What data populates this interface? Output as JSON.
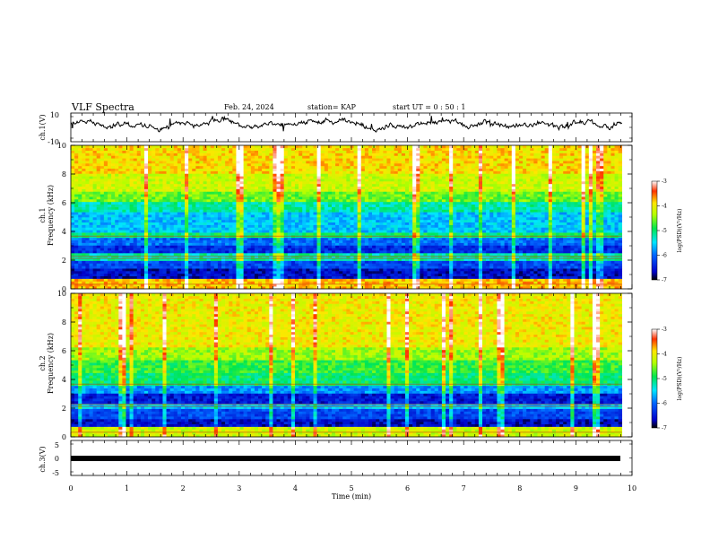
{
  "header": {
    "title": "VLF Spectra",
    "date": "Feb. 24, 2024",
    "station": "station= KAP",
    "start": "start  UT =   0 : 50 : 1"
  },
  "chart_data": [
    {
      "type": "line",
      "name": "ch1-waveform",
      "ylabel": "ch.1(V)",
      "ylim": [
        -10,
        10
      ],
      "yticks": [
        "10",
        "-10"
      ],
      "xlim": [
        0,
        10
      ],
      "values_hint": "noisy waveform around +2 V, range roughly -6 to +6 V over 0-9.8 min"
    },
    {
      "type": "heatmap",
      "name": "ch1-spectrogram",
      "ylabel": "ch.1\nFrequency  (kHz)",
      "ylim": [
        0,
        10
      ],
      "yticks": [
        "0",
        "2",
        "4",
        "6",
        "8",
        "10"
      ],
      "xlim": [
        0,
        9.82
      ],
      "colorbar": {
        "label": "log(PSD)(V²/Hz)",
        "range": [
          -7,
          -3
        ],
        "ticks": [
          "-3",
          "-4",
          "-5",
          "-6",
          "-7"
        ]
      },
      "bands": [
        {
          "from": 0.0,
          "to": 0.7,
          "level": -3.8
        },
        {
          "from": 0.7,
          "to": 1.4,
          "level": -6.6
        },
        {
          "from": 1.4,
          "to": 2.0,
          "level": -6.2
        },
        {
          "from": 2.0,
          "to": 2.5,
          "level": -5.2
        },
        {
          "from": 2.5,
          "to": 3.0,
          "level": -6.4
        },
        {
          "from": 3.0,
          "to": 3.6,
          "level": -6.0
        },
        {
          "from": 3.6,
          "to": 4.0,
          "level": -5.0
        },
        {
          "from": 4.0,
          "to": 5.3,
          "level": -5.6
        },
        {
          "from": 5.3,
          "to": 6.0,
          "level": -5.2
        },
        {
          "from": 6.0,
          "to": 6.8,
          "level": -4.6
        },
        {
          "from": 6.8,
          "to": 8.0,
          "level": -4.2
        },
        {
          "from": 8.0,
          "to": 10.0,
          "level": -3.9
        }
      ]
    },
    {
      "type": "heatmap",
      "name": "ch2-spectrogram",
      "ylabel": "ch.2\nFrequency  (kHz)",
      "ylim": [
        0,
        10
      ],
      "yticks": [
        "0",
        "2",
        "4",
        "6",
        "8",
        "10"
      ],
      "xlim": [
        0,
        9.82
      ],
      "colorbar": {
        "label": "log(PSD)(V²/Hz)",
        "range": [
          -7,
          -3
        ],
        "ticks": [
          "-3",
          "-4",
          "-5",
          "-6",
          "-7"
        ]
      },
      "bands": [
        {
          "from": 0.0,
          "to": 0.7,
          "level": -4.2
        },
        {
          "from": 0.7,
          "to": 1.3,
          "level": -6.6
        },
        {
          "from": 1.3,
          "to": 1.9,
          "level": -6.2
        },
        {
          "from": 1.9,
          "to": 2.4,
          "level": -5.6
        },
        {
          "from": 2.4,
          "to": 3.0,
          "level": -6.5
        },
        {
          "from": 3.0,
          "to": 3.6,
          "level": -5.8
        },
        {
          "from": 3.6,
          "to": 4.4,
          "level": -5.0
        },
        {
          "from": 4.4,
          "to": 5.4,
          "level": -4.8
        },
        {
          "from": 5.4,
          "to": 6.2,
          "level": -4.4
        },
        {
          "from": 6.2,
          "to": 10.0,
          "level": -4.0
        }
      ]
    },
    {
      "type": "line",
      "name": "ch3-waveform",
      "ylabel": "ch.3(V)",
      "ylim": [
        -5,
        5
      ],
      "yticks": [
        "5",
        "0",
        "-5"
      ],
      "xlim": [
        0,
        10
      ],
      "values": [
        {
          "x": 0,
          "y": 0
        },
        {
          "x": 9.82,
          "y": 0
        }
      ]
    }
  ],
  "xaxis": {
    "label": "Time  (min)",
    "ticks": [
      "0",
      "1",
      "2",
      "3",
      "4",
      "5",
      "6",
      "7",
      "8",
      "9",
      "10"
    ]
  }
}
